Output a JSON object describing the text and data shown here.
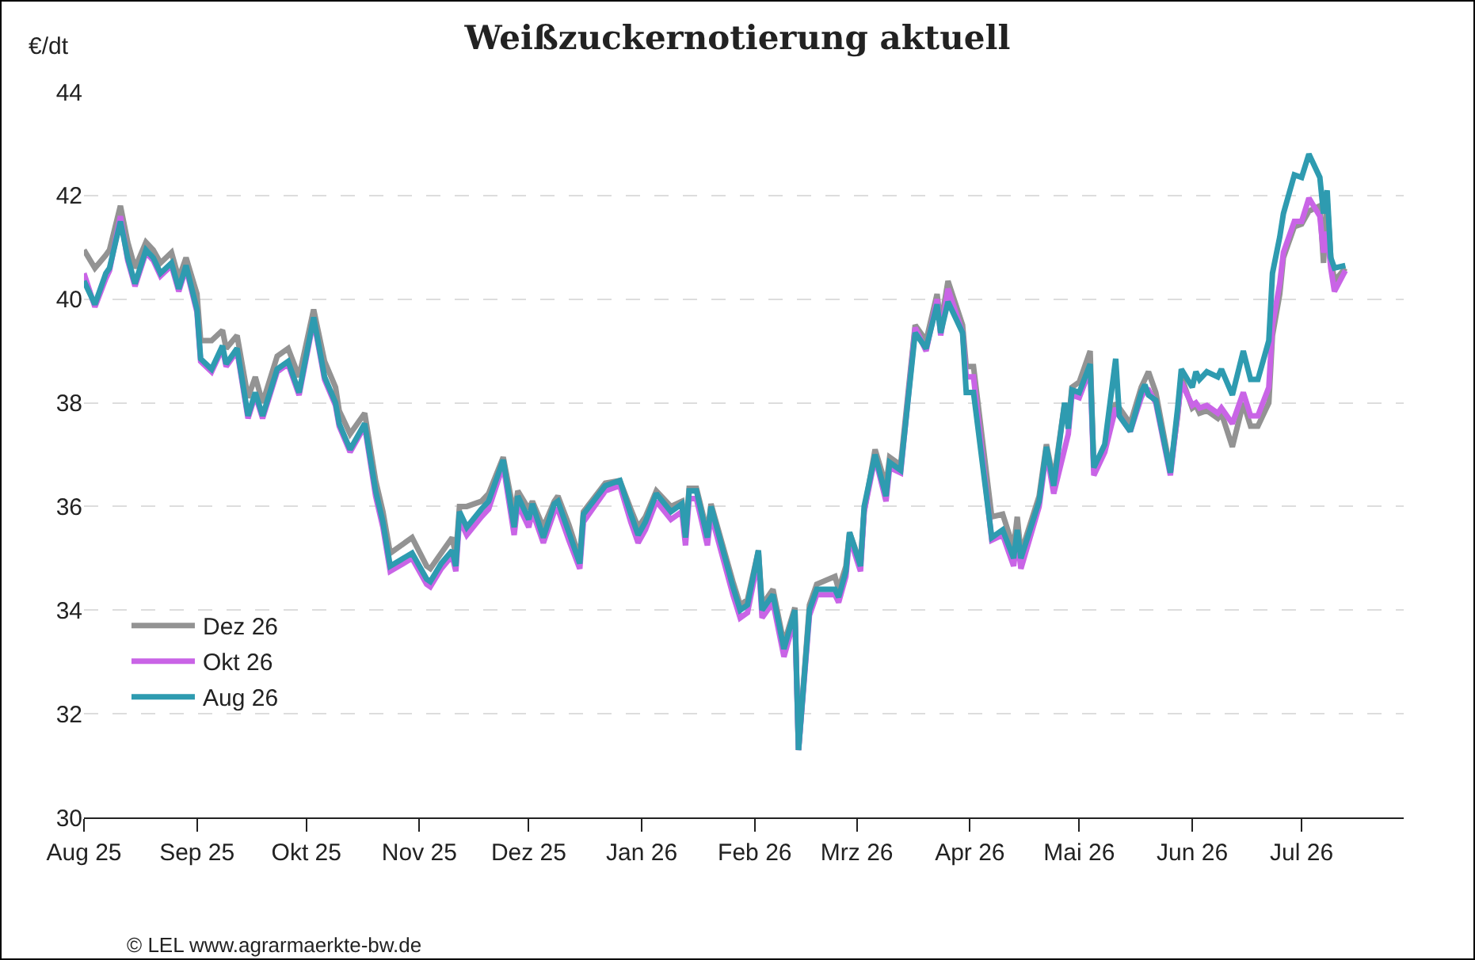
{
  "chart_data": {
    "type": "line",
    "title": "Weißzuckernotierung aktuell",
    "ylabel": "€/dt",
    "annotations": [
      "© LEL www.agrarmaerkte-bw.de"
    ],
    "x": [
      "2025-08-01",
      "2025-08-04",
      "2025-08-07",
      "2025-08-08",
      "2025-08-11",
      "2025-08-13",
      "2025-08-15",
      "2025-08-18",
      "2025-08-20",
      "2025-08-22",
      "2025-08-25",
      "2025-08-27",
      "2025-08-29",
      "2025-09-01",
      "2025-09-02",
      "2025-09-05",
      "2025-09-08",
      "2025-09-09",
      "2025-09-12",
      "2025-09-15",
      "2025-09-17",
      "2025-09-19",
      "2025-09-23",
      "2025-09-26",
      "2025-09-29",
      "2025-10-03",
      "2025-10-06",
      "2025-10-09",
      "2025-10-10",
      "2025-10-13",
      "2025-10-17",
      "2025-10-20",
      "2025-10-22",
      "2025-10-24",
      "2025-10-30",
      "2025-11-03",
      "2025-11-04",
      "2025-11-07",
      "2025-11-10",
      "2025-11-11",
      "2025-11-12",
      "2025-11-14",
      "2025-11-18",
      "2025-11-20",
      "2025-11-24",
      "2025-11-27",
      "2025-11-28",
      "2025-12-01",
      "2025-12-02",
      "2025-12-05",
      "2025-12-08",
      "2025-12-09",
      "2025-12-12",
      "2025-12-15",
      "2025-12-16",
      "2025-12-22",
      "2025-12-26",
      "2025-12-29",
      "2025-12-31",
      "2026-01-02",
      "2026-01-05",
      "2026-01-09",
      "2026-01-12",
      "2026-01-13",
      "2026-01-14",
      "2026-01-16",
      "2026-01-19",
      "2026-01-20",
      "2026-01-26",
      "2026-01-28",
      "2026-01-30",
      "2026-02-02",
      "2026-02-03",
      "2026-02-06",
      "2026-02-09",
      "2026-02-12",
      "2026-02-13",
      "2026-02-16",
      "2026-02-18",
      "2026-02-23",
      "2026-02-24",
      "2026-02-26",
      "2026-02-27",
      "2026-03-02",
      "2026-03-03",
      "2026-03-06",
      "2026-03-09",
      "2026-03-10",
      "2026-03-13",
      "2026-03-17",
      "2026-03-20",
      "2026-03-23",
      "2026-03-24",
      "2026-03-26",
      "2026-03-30",
      "2026-03-31",
      "2026-04-02",
      "2026-04-07",
      "2026-04-10",
      "2026-04-13",
      "2026-04-14",
      "2026-04-15",
      "2026-04-20",
      "2026-04-22",
      "2026-04-24",
      "2026-04-27",
      "2026-04-28",
      "2026-04-29",
      "2026-05-01",
      "2026-05-04",
      "2026-05-05",
      "2026-05-08",
      "2026-05-11",
      "2026-05-12",
      "2026-05-15",
      "2026-05-18",
      "2026-05-19",
      "2026-05-20",
      "2026-05-22",
      "2026-05-26",
      "2026-05-28",
      "2026-05-29",
      "2026-06-01",
      "2026-06-02",
      "2026-06-03",
      "2026-06-05",
      "2026-06-08",
      "2026-06-09",
      "2026-06-12",
      "2026-06-15",
      "2026-06-17",
      "2026-06-19",
      "2026-06-22",
      "2026-06-23",
      "2026-06-25",
      "2026-06-26",
      "2026-06-29",
      "2026-07-01",
      "2026-07-03",
      "2026-07-06",
      "2026-07-07",
      "2026-07-08",
      "2026-07-09",
      "2026-07-10",
      "2026-07-13"
    ],
    "series": [
      {
        "name": "Dez 26",
        "color": "#939393",
        "values": [
          40.95,
          40.6,
          40.85,
          40.95,
          41.8,
          41.1,
          40.6,
          41.1,
          40.95,
          40.7,
          40.9,
          40.4,
          40.8,
          40.1,
          39.2,
          39.2,
          39.4,
          39.05,
          39.3,
          38.1,
          38.5,
          38.0,
          38.9,
          39.05,
          38.5,
          39.8,
          38.8,
          38.3,
          37.85,
          37.4,
          37.8,
          36.5,
          35.9,
          35.1,
          35.4,
          34.85,
          34.8,
          35.1,
          35.4,
          35.05,
          36.0,
          36.0,
          36.1,
          36.25,
          36.95,
          35.85,
          36.3,
          35.95,
          36.1,
          35.6,
          36.1,
          36.2,
          35.65,
          35.0,
          35.9,
          36.45,
          36.5,
          35.95,
          35.6,
          35.8,
          36.3,
          36.0,
          36.1,
          35.5,
          36.35,
          36.35,
          35.5,
          36.05,
          34.55,
          34.1,
          34.2,
          35.15,
          34.1,
          34.4,
          33.35,
          34.05,
          31.3,
          34.1,
          34.5,
          34.65,
          34.4,
          34.85,
          35.5,
          34.9,
          35.9,
          37.1,
          36.4,
          36.95,
          36.8,
          39.5,
          39.2,
          40.1,
          39.5,
          40.35,
          39.5,
          38.7,
          38.7,
          35.8,
          35.85,
          35.2,
          35.8,
          35.1,
          36.2,
          37.2,
          36.5,
          38.0,
          37.6,
          38.3,
          38.4,
          39.0,
          36.7,
          37.1,
          38.0,
          37.9,
          37.6,
          38.3,
          38.45,
          38.6,
          38.2,
          36.7,
          37.75,
          38.5,
          37.9,
          37.95,
          37.8,
          37.85,
          37.7,
          37.8,
          37.15,
          38.0,
          37.55,
          37.55,
          38.0,
          39.3,
          40.1,
          40.8,
          41.4,
          41.45,
          41.7,
          41.8,
          40.7,
          41.9,
          40.8,
          40.35,
          40.6
        ]
      },
      {
        "name": "Okt 26",
        "color": "#c964e6",
        "values": [
          40.5,
          39.85,
          40.4,
          40.55,
          41.6,
          40.75,
          40.25,
          40.9,
          40.75,
          40.45,
          40.65,
          40.15,
          40.6,
          39.75,
          38.8,
          38.6,
          39.05,
          38.7,
          39.0,
          37.7,
          38.15,
          37.7,
          38.6,
          38.75,
          38.15,
          39.6,
          38.45,
          37.95,
          37.55,
          37.05,
          37.55,
          36.2,
          35.6,
          34.75,
          35.0,
          34.5,
          34.45,
          34.8,
          35.05,
          34.75,
          35.75,
          35.45,
          35.8,
          35.95,
          36.8,
          35.45,
          36.05,
          35.6,
          35.9,
          35.3,
          35.9,
          35.95,
          35.35,
          34.8,
          35.7,
          36.3,
          36.4,
          35.7,
          35.3,
          35.55,
          36.1,
          35.75,
          35.9,
          35.25,
          36.15,
          36.15,
          35.25,
          35.85,
          34.3,
          33.85,
          33.95,
          35.0,
          33.85,
          34.15,
          33.1,
          33.85,
          31.3,
          33.9,
          34.3,
          34.3,
          34.15,
          34.65,
          35.4,
          34.75,
          35.9,
          36.95,
          36.1,
          36.75,
          36.65,
          39.45,
          39.0,
          40.0,
          39.3,
          40.2,
          39.35,
          38.5,
          38.5,
          35.35,
          35.45,
          34.85,
          35.4,
          34.8,
          36.0,
          37.05,
          36.25,
          null,
          37.4,
          38.15,
          38.1,
          38.65,
          36.6,
          37.05,
          37.9,
          37.75,
          37.45,
          38.1,
          38.25,
          38.25,
          38.0,
          36.6,
          37.8,
          38.4,
          37.95,
          38.0,
          37.9,
          37.95,
          37.8,
          37.9,
          37.6,
          38.2,
          37.75,
          37.75,
          38.3,
          39.5,
          40.3,
          40.9,
          41.5,
          41.5,
          41.95,
          41.6,
          40.9,
          41.3,
          40.6,
          40.15,
          40.55
        ]
      },
      {
        "name": "Aug 26",
        "color": "#2e9bb0",
        "values": [
          40.35,
          39.9,
          40.5,
          40.6,
          41.5,
          40.8,
          40.3,
          40.95,
          40.8,
          40.5,
          40.7,
          40.2,
          40.65,
          39.8,
          38.85,
          38.65,
          39.1,
          38.75,
          39.05,
          37.75,
          38.2,
          37.75,
          38.65,
          38.8,
          38.2,
          39.65,
          38.5,
          38.0,
          37.6,
          37.1,
          37.6,
          36.3,
          35.7,
          34.85,
          35.1,
          34.6,
          34.55,
          34.9,
          35.15,
          34.85,
          35.9,
          35.6,
          35.95,
          36.1,
          36.9,
          35.6,
          36.2,
          35.75,
          36.05,
          35.4,
          36.05,
          36.1,
          35.5,
          34.9,
          35.85,
          36.4,
          36.5,
          35.85,
          35.45,
          35.7,
          36.25,
          35.9,
          36.05,
          35.4,
          36.3,
          36.3,
          35.4,
          36.0,
          34.45,
          34.0,
          34.1,
          35.15,
          34.0,
          34.3,
          33.25,
          34.0,
          31.3,
          34.0,
          34.4,
          34.4,
          34.25,
          34.75,
          35.5,
          34.85,
          36.0,
          37.0,
          36.2,
          36.85,
          36.7,
          39.35,
          39.05,
          39.9,
          39.35,
          39.95,
          39.35,
          38.2,
          38.2,
          35.4,
          35.55,
          35.0,
          35.55,
          35.0,
          36.1,
          37.15,
          36.4,
          38.0,
          37.5,
          38.25,
          38.2,
          38.75,
          36.75,
          37.2,
          38.85,
          37.75,
          37.45,
          38.2,
          38.35,
          38.15,
          38.05,
          36.65,
          37.9,
          38.65,
          38.3,
          38.6,
          38.45,
          38.6,
          38.5,
          38.65,
          38.15,
          39.0,
          38.45,
          38.45,
          39.2,
          40.5,
          41.2,
          41.65,
          42.4,
          42.35,
          42.8,
          42.35,
          41.65,
          42.1,
          40.8,
          40.6,
          40.65
        ]
      }
    ],
    "xlim": [
      "2025-08-01",
      "2026-07-29"
    ],
    "xticks": [
      {
        "value": "2025-08-01",
        "label": "Aug 25"
      },
      {
        "value": "2025-09-01",
        "label": "Sep 25"
      },
      {
        "value": "2025-10-01",
        "label": "Okt 25"
      },
      {
        "value": "2025-11-01",
        "label": "Nov 25"
      },
      {
        "value": "2025-12-01",
        "label": "Dez 25"
      },
      {
        "value": "2026-01-01",
        "label": "Jan 26"
      },
      {
        "value": "2026-02-01",
        "label": "Feb 26"
      },
      {
        "value": "2026-03-01",
        "label": "Mrz 26"
      },
      {
        "value": "2026-04-01",
        "label": "Apr 26"
      },
      {
        "value": "2026-05-01",
        "label": "Mai 26"
      },
      {
        "value": "2026-06-01",
        "label": "Jun 26"
      },
      {
        "value": "2026-07-01",
        "label": "Jul 26"
      }
    ],
    "ylim": [
      30,
      44
    ],
    "yticks": [
      30,
      32,
      34,
      36,
      38,
      40,
      42,
      44
    ],
    "grid": "y",
    "legend": "bottom left",
    "marker": "none",
    "line_style": "solid"
  }
}
